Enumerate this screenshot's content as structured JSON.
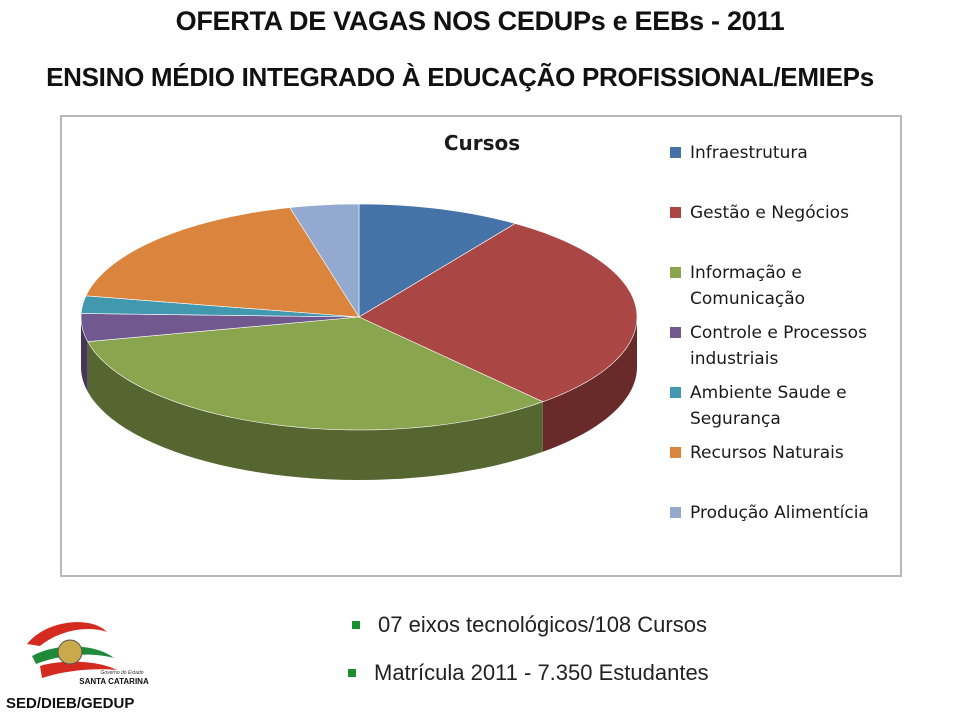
{
  "header": {
    "title_line1": "OFERTA DE VAGAS NOS CEDUPs e EEBs - 2011",
    "title_line2": "ENSINO MÉDIO INTEGRADO À EDUCAÇÃO PROFISSIONAL/EMIEPs"
  },
  "chart_data": {
    "type": "pie",
    "title": "Cursos",
    "three_d": true,
    "legend_position": "right",
    "categories": [
      "Infraestrutura",
      "Gestão e Negócios",
      "Informação e Comunicação",
      "Controle e Processos industriais",
      "Ambiente Saude e Segurança",
      "Recursos Naturais",
      "Produção Alimentícia"
    ],
    "legend_lines": [
      [
        "Infraestrutura"
      ],
      [
        "Gestão e Negócios"
      ],
      [
        "Informação e",
        "Comunicação"
      ],
      [
        "Controle e Processos",
        "industriais"
      ],
      [
        "Ambiente Saude e",
        "Segurança"
      ],
      [
        "Recursos Naturais"
      ],
      [
        "Produção Alimentícia"
      ]
    ],
    "values": [
      9.5,
      29,
      33,
      4,
      2.5,
      18,
      4
    ],
    "colors": [
      "#4572a7",
      "#aa4643",
      "#89a54e",
      "#71588f",
      "#4198af",
      "#db843d",
      "#93a9cf"
    ]
  },
  "bullets": [
    "07 eixos tecnológicos/108 Cursos",
    "Matrícula 2011 - 7.350 Estudantes"
  ],
  "logo": {
    "caption": "Governo do Estado",
    "name": "SANTA CATARINA"
  },
  "footer": {
    "tag": "SED/DIEB/GEDUP"
  }
}
